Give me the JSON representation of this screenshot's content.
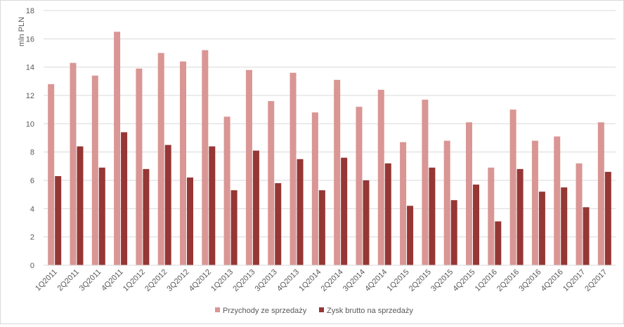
{
  "chart_data": {
    "type": "bar",
    "ylabel": "mln PLN",
    "xlabel": "",
    "ylim": [
      0,
      18
    ],
    "y_ticks": [
      0,
      2,
      4,
      6,
      8,
      10,
      12,
      14,
      16,
      18
    ],
    "grid": true,
    "legend_position": "bottom",
    "categories": [
      "1Q2011",
      "2Q2011",
      "3Q2011",
      "4Q2011",
      "1Q2012",
      "2Q2012",
      "3Q2012",
      "4Q2012",
      "1Q2013",
      "2Q2013",
      "3Q2013",
      "4Q2013",
      "1Q2014",
      "2Q2014",
      "3Q2014",
      "4Q2014",
      "1Q2015",
      "2Q2015",
      "3Q2015",
      "4Q2015",
      "1Q2016",
      "2Q2016",
      "3Q2016",
      "4Q2016",
      "1Q2017",
      "2Q2017"
    ],
    "series": [
      {
        "name": "Przychody ze sprzedaży",
        "color": "#d99694",
        "values": [
          12.8,
          14.3,
          13.4,
          16.5,
          13.9,
          15.0,
          14.4,
          15.2,
          10.5,
          13.8,
          11.6,
          13.6,
          10.8,
          13.1,
          11.2,
          12.4,
          8.7,
          11.7,
          8.8,
          10.1,
          6.9,
          11.0,
          8.8,
          9.1,
          7.2,
          10.1
        ]
      },
      {
        "name": "Zysk brutto na sprzedaży",
        "color": "#953735",
        "values": [
          6.3,
          8.4,
          6.9,
          9.4,
          6.8,
          8.5,
          6.2,
          8.4,
          5.3,
          8.1,
          5.8,
          7.5,
          5.3,
          7.6,
          6.0,
          7.2,
          4.2,
          6.9,
          4.6,
          5.7,
          3.1,
          6.8,
          5.2,
          5.5,
          4.1,
          6.6
        ]
      }
    ]
  },
  "colors": {
    "grid": "#d9d9d9",
    "text": "#595959",
    "border": "#d9d9d9"
  }
}
